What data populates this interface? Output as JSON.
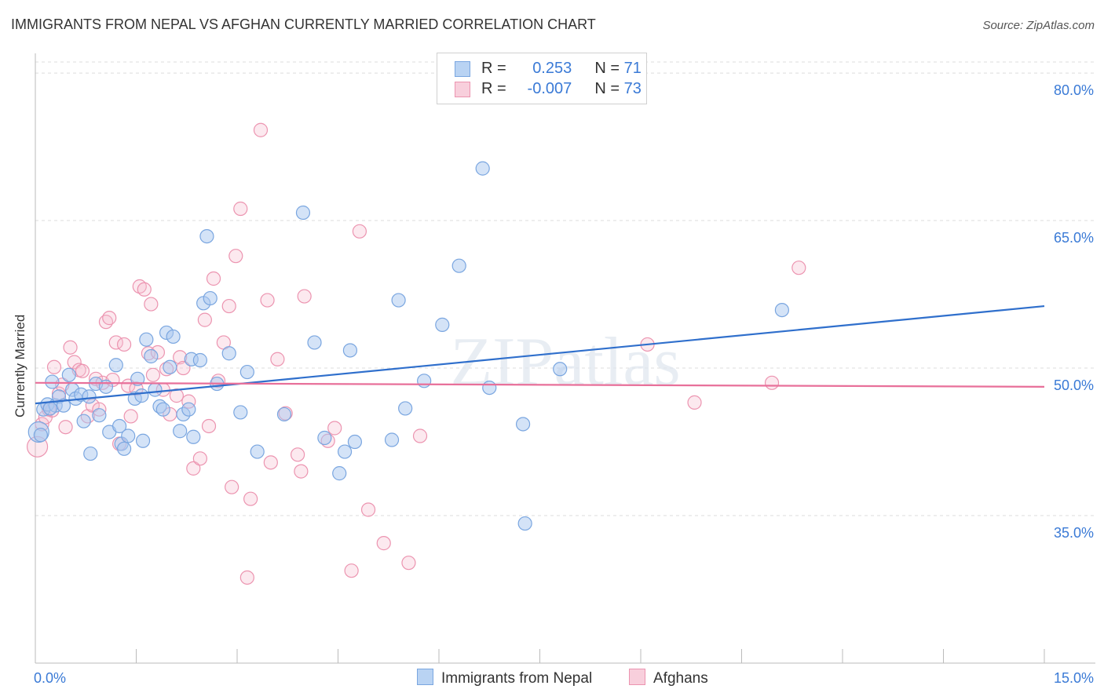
{
  "title": "IMMIGRANTS FROM NEPAL VS AFGHAN CURRENTLY MARRIED CORRELATION CHART",
  "source": "Source: ZipAtlas.com",
  "watermark": "ZIPatlas",
  "legend_top": [
    {
      "r_label": "R =",
      "r_value": "0.253",
      "n_label": "N =",
      "n_value": "71"
    },
    {
      "r_label": "R =",
      "r_value": "-0.007",
      "n_label": "N =",
      "n_value": "73"
    }
  ],
  "colors": {
    "nepal_fill": "#a9c8f0",
    "nepal_stroke": "#7aa6e0",
    "nepal_line": "#2f6fcc",
    "afghan_fill": "#f5bfd0",
    "afghan_stroke": "#ec94b0",
    "afghan_line": "#e8709a",
    "tick_text": "#3a7ad6",
    "grid": "#dddddd"
  },
  "chart_data": {
    "type": "scatter",
    "title": "IMMIGRANTS FROM NEPAL VS AFGHAN CURRENTLY MARRIED CORRELATION CHART",
    "xlabel": "",
    "ylabel": "Currently Married",
    "xlim": [
      0,
      15
    ],
    "ylim": [
      20,
      82
    ],
    "x_tick_labels": [
      "0.0%",
      "15.0%"
    ],
    "y_ticks": [
      35,
      50,
      65,
      80
    ],
    "y_tick_labels": [
      "35.0%",
      "50.0%",
      "65.0%",
      "80.0%"
    ],
    "legend": [
      "Immigrants from Nepal",
      "Afghans"
    ],
    "series": [
      {
        "name": "Immigrants from Nepal",
        "r": 0.253,
        "n": 71,
        "trend": {
          "x": [
            0,
            15
          ],
          "y": [
            46.4,
            56.3
          ]
        },
        "points": [
          [
            0.05,
            43.5
          ],
          [
            0.12,
            45.8
          ],
          [
            0.18,
            46.3
          ],
          [
            0.25,
            48.6
          ],
          [
            0.3,
            46.2
          ],
          [
            0.35,
            47.1
          ],
          [
            0.42,
            46.2
          ],
          [
            0.5,
            49.3
          ],
          [
            0.55,
            47.8
          ],
          [
            0.6,
            46.9
          ],
          [
            0.68,
            47.3
          ],
          [
            0.72,
            44.6
          ],
          [
            0.8,
            47.1
          ],
          [
            0.82,
            41.3
          ],
          [
            0.9,
            48.4
          ],
          [
            0.95,
            45.2
          ],
          [
            1.05,
            48.1
          ],
          [
            1.1,
            43.5
          ],
          [
            1.2,
            50.3
          ],
          [
            1.25,
            44.1
          ],
          [
            1.28,
            42.3
          ],
          [
            1.32,
            41.8
          ],
          [
            1.38,
            43.1
          ],
          [
            1.48,
            46.9
          ],
          [
            1.52,
            48.9
          ],
          [
            1.58,
            47.2
          ],
          [
            1.6,
            42.6
          ],
          [
            1.65,
            52.9
          ],
          [
            1.72,
            51.2
          ],
          [
            1.78,
            47.8
          ],
          [
            1.85,
            46.1
          ],
          [
            1.9,
            45.8
          ],
          [
            1.95,
            53.6
          ],
          [
            2.0,
            50.1
          ],
          [
            2.05,
            53.2
          ],
          [
            2.15,
            43.6
          ],
          [
            2.2,
            45.3
          ],
          [
            2.28,
            45.8
          ],
          [
            2.32,
            50.9
          ],
          [
            2.45,
            50.8
          ],
          [
            2.5,
            56.6
          ],
          [
            2.55,
            63.4
          ],
          [
            2.6,
            57.1
          ],
          [
            2.7,
            48.4
          ],
          [
            2.88,
            51.5
          ],
          [
            3.05,
            45.5
          ],
          [
            3.15,
            49.6
          ],
          [
            3.3,
            41.5
          ],
          [
            3.7,
            45.3
          ],
          [
            3.98,
            65.8
          ],
          [
            4.15,
            52.6
          ],
          [
            4.3,
            42.9
          ],
          [
            4.52,
            39.3
          ],
          [
            4.6,
            41.5
          ],
          [
            4.68,
            51.8
          ],
          [
            4.75,
            42.5
          ],
          [
            5.3,
            42.7
          ],
          [
            5.4,
            56.9
          ],
          [
            5.5,
            45.9
          ],
          [
            5.78,
            48.7
          ],
          [
            6.05,
            54.4
          ],
          [
            6.3,
            60.4
          ],
          [
            6.65,
            70.3
          ],
          [
            6.75,
            48.0
          ],
          [
            7.25,
            44.3
          ],
          [
            7.28,
            34.2
          ],
          [
            7.8,
            49.9
          ],
          [
            11.1,
            55.9
          ],
          [
            0.08,
            43.2
          ],
          [
            0.22,
            45.9
          ],
          [
            2.35,
            43.0
          ]
        ]
      },
      {
        "name": "Afghans",
        "r": -0.007,
        "n": 73,
        "trend": {
          "x": [
            0,
            15
          ],
          "y": [
            48.5,
            48.1
          ]
        },
        "points": [
          [
            0.03,
            42.0
          ],
          [
            0.1,
            44.3
          ],
          [
            0.15,
            45.0
          ],
          [
            0.2,
            45.8
          ],
          [
            0.28,
            50.1
          ],
          [
            0.35,
            47.4
          ],
          [
            0.4,
            48.3
          ],
          [
            0.45,
            44.0
          ],
          [
            0.52,
            52.1
          ],
          [
            0.58,
            50.6
          ],
          [
            0.65,
            49.8
          ],
          [
            0.7,
            49.7
          ],
          [
            0.78,
            45.1
          ],
          [
            0.85,
            46.2
          ],
          [
            0.9,
            48.9
          ],
          [
            0.95,
            45.8
          ],
          [
            1.0,
            48.5
          ],
          [
            1.05,
            54.7
          ],
          [
            1.1,
            55.1
          ],
          [
            1.15,
            48.8
          ],
          [
            1.2,
            52.6
          ],
          [
            1.25,
            42.3
          ],
          [
            1.32,
            52.4
          ],
          [
            1.38,
            48.2
          ],
          [
            1.42,
            45.1
          ],
          [
            1.5,
            47.9
          ],
          [
            1.55,
            58.3
          ],
          [
            1.62,
            58.0
          ],
          [
            1.68,
            51.5
          ],
          [
            1.72,
            56.5
          ],
          [
            1.75,
            49.3
          ],
          [
            1.82,
            51.6
          ],
          [
            1.9,
            47.8
          ],
          [
            1.95,
            49.9
          ],
          [
            2.0,
            45.3
          ],
          [
            2.1,
            47.2
          ],
          [
            2.15,
            51.1
          ],
          [
            2.2,
            50.0
          ],
          [
            2.28,
            46.6
          ],
          [
            2.35,
            39.8
          ],
          [
            2.45,
            40.8
          ],
          [
            2.52,
            54.9
          ],
          [
            2.58,
            44.1
          ],
          [
            2.65,
            59.1
          ],
          [
            2.72,
            48.7
          ],
          [
            2.8,
            52.6
          ],
          [
            2.88,
            56.3
          ],
          [
            2.92,
            37.9
          ],
          [
            2.98,
            61.4
          ],
          [
            3.05,
            66.2
          ],
          [
            3.15,
            28.7
          ],
          [
            3.2,
            36.7
          ],
          [
            3.35,
            74.2
          ],
          [
            3.45,
            56.9
          ],
          [
            3.5,
            40.4
          ],
          [
            3.6,
            50.9
          ],
          [
            3.72,
            45.4
          ],
          [
            3.9,
            41.2
          ],
          [
            3.95,
            39.5
          ],
          [
            4.0,
            57.3
          ],
          [
            4.35,
            42.6
          ],
          [
            4.45,
            43.9
          ],
          [
            4.7,
            29.4
          ],
          [
            4.82,
            63.9
          ],
          [
            4.95,
            35.6
          ],
          [
            5.18,
            32.2
          ],
          [
            5.55,
            30.2
          ],
          [
            5.72,
            43.1
          ],
          [
            9.1,
            52.4
          ],
          [
            9.8,
            46.5
          ],
          [
            10.95,
            48.5
          ],
          [
            11.35,
            60.2
          ],
          [
            0.25,
            45.7
          ]
        ]
      }
    ]
  },
  "bottom_legend": [
    {
      "label": "Immigrants from Nepal"
    },
    {
      "label": "Afghans"
    }
  ]
}
